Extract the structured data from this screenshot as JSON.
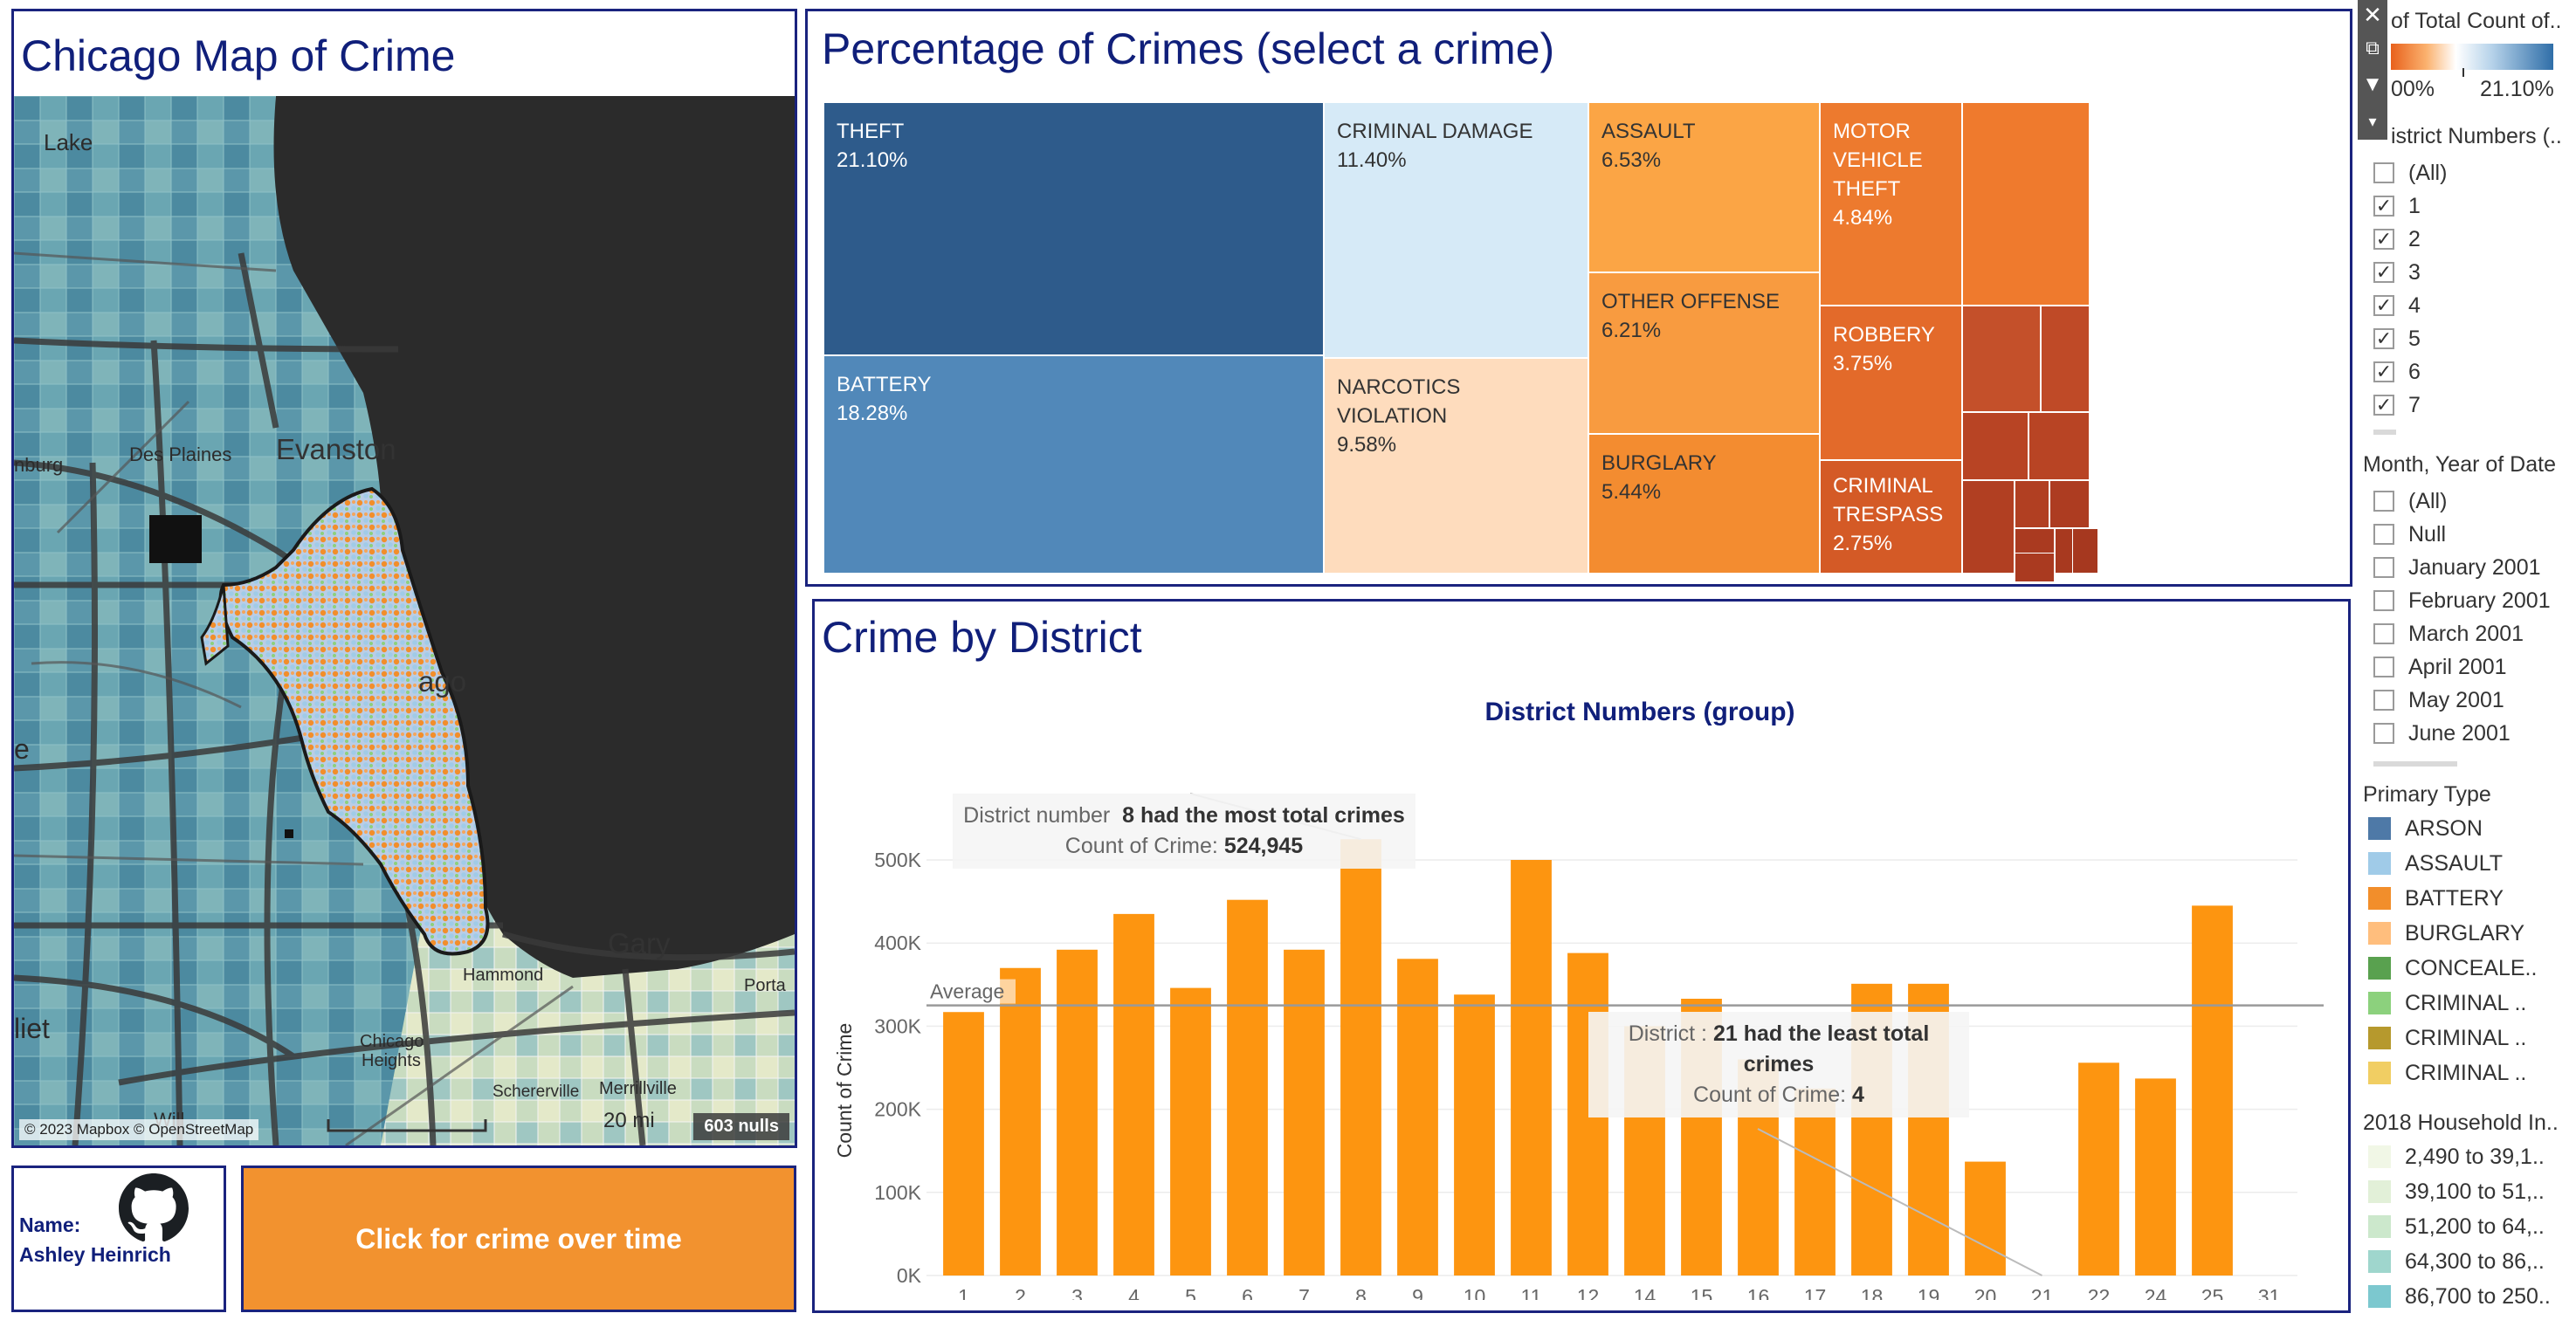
{
  "map": {
    "title": "Chicago Map of Crime",
    "labels": {
      "lake": "Lake",
      "evanston": "Evanston",
      "desplaines": "Des Plaines",
      "burg": "nburg",
      "chicago": "ago",
      "gary": "Gary",
      "hammond": "Hammond",
      "chicagoheights1": "Chicago",
      "chicagoheights2": "Heights",
      "schererville": "Schererville",
      "merrillville": "Merrillville",
      "porta": "Porta",
      "liet": "liet",
      "will": "Will",
      "e": "e",
      "scale": "20 mi"
    },
    "attribution": "© 2023 Mapbox © OpenStreetMap",
    "nulls": "603 nulls"
  },
  "author": {
    "name_label": "Name:",
    "name": "Ashley Heinrich",
    "icon": "github-icon"
  },
  "button": {
    "label": "Click for crime over time"
  },
  "treemap": {
    "title": "Percentage of Crimes (select a crime)",
    "tiles": [
      {
        "label": "THEFT",
        "pct": "21.10%",
        "color": "#2e5b8b"
      },
      {
        "label": "BATTERY",
        "pct": "18.28%",
        "color": "#5188b9"
      },
      {
        "label": "CRIMINAL DAMAGE",
        "pct": "11.40%",
        "color": "#d6eaf7"
      },
      {
        "label": "NARCOTICS VIOLATION",
        "pct": "9.58%",
        "color": "#fedcbd"
      },
      {
        "label": "ASSAULT",
        "pct": "6.53%",
        "color": "#fba545"
      },
      {
        "label": "OTHER OFFENSE",
        "pct": "6.21%",
        "color": "#f89b40"
      },
      {
        "label": "BURGLARY",
        "pct": "5.44%",
        "color": "#f38c30"
      },
      {
        "label": "MOTOR VEHICLE THEFT",
        "pct": "4.84%",
        "color": "#ed7a2e"
      },
      {
        "label": "ROBBERY",
        "pct": "3.75%",
        "color": "#e36a2a"
      },
      {
        "label": "CRIMINAL TRESPASS",
        "pct": "2.75%",
        "color": "#d45a26"
      }
    ]
  },
  "district_chart": {
    "panel_title": "Crime by District",
    "chart_data": {
      "type": "bar",
      "title": "District Numbers (group)",
      "ylabel": "Count of Crime",
      "xlabel": "",
      "categories": [
        "1",
        "2",
        "3",
        "4",
        "5",
        "6",
        "7",
        "8",
        "9",
        "10",
        "11",
        "12",
        "14",
        "15",
        "16",
        "17",
        "18",
        "19",
        "20",
        "21",
        "22",
        "24",
        "25",
        "31"
      ],
      "values": [
        317000,
        370000,
        392000,
        435000,
        346000,
        452000,
        392000,
        524945,
        381000,
        338000,
        500000,
        388000,
        300000,
        333000,
        260000,
        225000,
        351000,
        351000,
        137000,
        4,
        256000,
        237000,
        445000,
        0
      ],
      "ylim": [
        0,
        550000
      ],
      "yticks": [
        "0K",
        "100K",
        "200K",
        "300K",
        "400K",
        "500K"
      ],
      "bar_color": "#fd9510",
      "grid": true,
      "average_label": "Average",
      "average_value": 325000
    },
    "annotation_max": {
      "prefix": "District number",
      "bold": "8 had the most total crimes",
      "line2_label": "Count of Crime:",
      "line2_value": "524,945"
    },
    "annotation_min": {
      "prefix": "District :",
      "bold1": "21 had the least total",
      "bold2": "crimes",
      "line2_label": "Count of Crime:",
      "line2_value": "4"
    }
  },
  "sidebar": {
    "color_legend": {
      "title": "of Total Count of..",
      "min": "00%",
      "max": "21.10%"
    },
    "district_filter": {
      "title": "istrict Numbers (..",
      "items": [
        {
          "label": "(All)",
          "checked": false
        },
        {
          "label": "1",
          "checked": true
        },
        {
          "label": "2",
          "checked": true
        },
        {
          "label": "3",
          "checked": true
        },
        {
          "label": "4",
          "checked": true
        },
        {
          "label": "5",
          "checked": true
        },
        {
          "label": "6",
          "checked": true
        },
        {
          "label": "7",
          "checked": true
        }
      ]
    },
    "date_filter": {
      "title": "Month, Year of Date",
      "items": [
        {
          "label": "(All)"
        },
        {
          "label": "Null"
        },
        {
          "label": "January 2001"
        },
        {
          "label": "February 2001"
        },
        {
          "label": "March 2001"
        },
        {
          "label": "April 2001"
        },
        {
          "label": "May 2001"
        },
        {
          "label": "June 2001"
        }
      ]
    },
    "primary_type": {
      "title": "Primary Type",
      "items": [
        {
          "label": "ARSON",
          "color": "#4e79a7"
        },
        {
          "label": "ASSAULT",
          "color": "#a0cbe8"
        },
        {
          "label": "BATTERY",
          "color": "#f28e2b"
        },
        {
          "label": "BURGLARY",
          "color": "#ffbe7d"
        },
        {
          "label": "CONCEALE..",
          "color": "#59a14f"
        },
        {
          "label": "CRIMINAL ..",
          "color": "#8cd17d"
        },
        {
          "label": "CRIMINAL ..",
          "color": "#b6992d"
        },
        {
          "label": "CRIMINAL ..",
          "color": "#f1ce63"
        }
      ]
    },
    "household": {
      "title": "2018 Household In..",
      "items": [
        {
          "label": "2,490 to 39,1..",
          "color": "#f1f7e6"
        },
        {
          "label": "39,100 to 51,..",
          "color": "#e2f0d8"
        },
        {
          "label": "51,200 to 64,..",
          "color": "#cce8cc"
        },
        {
          "label": "64,300 to 86,..",
          "color": "#9fd6cd"
        },
        {
          "label": "86,700 to 250..",
          "color": "#7cc8cf"
        }
      ]
    }
  }
}
